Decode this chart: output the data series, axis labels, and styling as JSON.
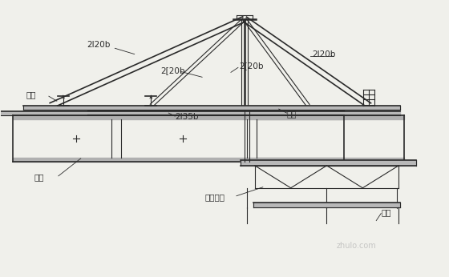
{
  "bg_color": "#f0f0eb",
  "line_color": "#2a2a2a",
  "fill_light": "#c8c8c8",
  "fill_white": "#ffffff",
  "labels": {
    "2I20b_left": "2I20b",
    "2I20b_right": "2I20b",
    "2_20b_left": "2[20b",
    "2_20b_right": "2[20b",
    "2I35b": "2I35b",
    "zou_ban": "走板",
    "mao_gan": "锁杆",
    "jia_ti": "架体",
    "di_mo": "底模桥片",
    "diao_gan": "吸杆"
  },
  "watermark": "zhulo.com"
}
